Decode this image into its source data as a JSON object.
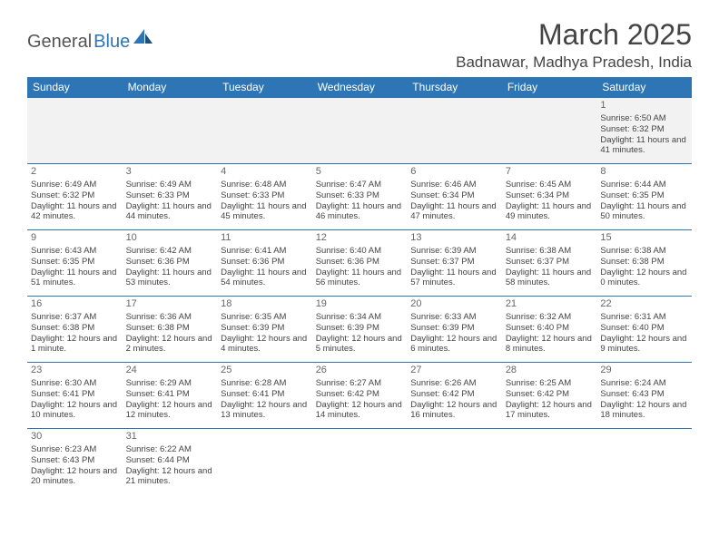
{
  "logo": {
    "part1": "General",
    "part2": "Blue"
  },
  "title": "March 2025",
  "location": "Badnawar, Madhya Pradesh, India",
  "colors": {
    "header_bg": "#2e75b6",
    "header_text": "#ffffff",
    "grid_border": "#2e75b6",
    "body_text": "#444444",
    "first_row_bg": "#f2f2f2",
    "logo_accent": "#2e75b6"
  },
  "typography": {
    "title_fontsize": 32,
    "location_fontsize": 17,
    "th_fontsize": 12,
    "cell_fontsize": 9.5,
    "daynum_fontsize": 11
  },
  "columns": [
    "Sunday",
    "Monday",
    "Tuesday",
    "Wednesday",
    "Thursday",
    "Friday",
    "Saturday"
  ],
  "weeks": [
    [
      null,
      null,
      null,
      null,
      null,
      null,
      {
        "day": "1",
        "sunrise": "Sunrise: 6:50 AM",
        "sunset": "Sunset: 6:32 PM",
        "daylight": "Daylight: 11 hours and 41 minutes."
      }
    ],
    [
      {
        "day": "2",
        "sunrise": "Sunrise: 6:49 AM",
        "sunset": "Sunset: 6:32 PM",
        "daylight": "Daylight: 11 hours and 42 minutes."
      },
      {
        "day": "3",
        "sunrise": "Sunrise: 6:49 AM",
        "sunset": "Sunset: 6:33 PM",
        "daylight": "Daylight: 11 hours and 44 minutes."
      },
      {
        "day": "4",
        "sunrise": "Sunrise: 6:48 AM",
        "sunset": "Sunset: 6:33 PM",
        "daylight": "Daylight: 11 hours and 45 minutes."
      },
      {
        "day": "5",
        "sunrise": "Sunrise: 6:47 AM",
        "sunset": "Sunset: 6:33 PM",
        "daylight": "Daylight: 11 hours and 46 minutes."
      },
      {
        "day": "6",
        "sunrise": "Sunrise: 6:46 AM",
        "sunset": "Sunset: 6:34 PM",
        "daylight": "Daylight: 11 hours and 47 minutes."
      },
      {
        "day": "7",
        "sunrise": "Sunrise: 6:45 AM",
        "sunset": "Sunset: 6:34 PM",
        "daylight": "Daylight: 11 hours and 49 minutes."
      },
      {
        "day": "8",
        "sunrise": "Sunrise: 6:44 AM",
        "sunset": "Sunset: 6:35 PM",
        "daylight": "Daylight: 11 hours and 50 minutes."
      }
    ],
    [
      {
        "day": "9",
        "sunrise": "Sunrise: 6:43 AM",
        "sunset": "Sunset: 6:35 PM",
        "daylight": "Daylight: 11 hours and 51 minutes."
      },
      {
        "day": "10",
        "sunrise": "Sunrise: 6:42 AM",
        "sunset": "Sunset: 6:36 PM",
        "daylight": "Daylight: 11 hours and 53 minutes."
      },
      {
        "day": "11",
        "sunrise": "Sunrise: 6:41 AM",
        "sunset": "Sunset: 6:36 PM",
        "daylight": "Daylight: 11 hours and 54 minutes."
      },
      {
        "day": "12",
        "sunrise": "Sunrise: 6:40 AM",
        "sunset": "Sunset: 6:36 PM",
        "daylight": "Daylight: 11 hours and 56 minutes."
      },
      {
        "day": "13",
        "sunrise": "Sunrise: 6:39 AM",
        "sunset": "Sunset: 6:37 PM",
        "daylight": "Daylight: 11 hours and 57 minutes."
      },
      {
        "day": "14",
        "sunrise": "Sunrise: 6:38 AM",
        "sunset": "Sunset: 6:37 PM",
        "daylight": "Daylight: 11 hours and 58 minutes."
      },
      {
        "day": "15",
        "sunrise": "Sunrise: 6:38 AM",
        "sunset": "Sunset: 6:38 PM",
        "daylight": "Daylight: 12 hours and 0 minutes."
      }
    ],
    [
      {
        "day": "16",
        "sunrise": "Sunrise: 6:37 AM",
        "sunset": "Sunset: 6:38 PM",
        "daylight": "Daylight: 12 hours and 1 minute."
      },
      {
        "day": "17",
        "sunrise": "Sunrise: 6:36 AM",
        "sunset": "Sunset: 6:38 PM",
        "daylight": "Daylight: 12 hours and 2 minutes."
      },
      {
        "day": "18",
        "sunrise": "Sunrise: 6:35 AM",
        "sunset": "Sunset: 6:39 PM",
        "daylight": "Daylight: 12 hours and 4 minutes."
      },
      {
        "day": "19",
        "sunrise": "Sunrise: 6:34 AM",
        "sunset": "Sunset: 6:39 PM",
        "daylight": "Daylight: 12 hours and 5 minutes."
      },
      {
        "day": "20",
        "sunrise": "Sunrise: 6:33 AM",
        "sunset": "Sunset: 6:39 PM",
        "daylight": "Daylight: 12 hours and 6 minutes."
      },
      {
        "day": "21",
        "sunrise": "Sunrise: 6:32 AM",
        "sunset": "Sunset: 6:40 PM",
        "daylight": "Daylight: 12 hours and 8 minutes."
      },
      {
        "day": "22",
        "sunrise": "Sunrise: 6:31 AM",
        "sunset": "Sunset: 6:40 PM",
        "daylight": "Daylight: 12 hours and 9 minutes."
      }
    ],
    [
      {
        "day": "23",
        "sunrise": "Sunrise: 6:30 AM",
        "sunset": "Sunset: 6:41 PM",
        "daylight": "Daylight: 12 hours and 10 minutes."
      },
      {
        "day": "24",
        "sunrise": "Sunrise: 6:29 AM",
        "sunset": "Sunset: 6:41 PM",
        "daylight": "Daylight: 12 hours and 12 minutes."
      },
      {
        "day": "25",
        "sunrise": "Sunrise: 6:28 AM",
        "sunset": "Sunset: 6:41 PM",
        "daylight": "Daylight: 12 hours and 13 minutes."
      },
      {
        "day": "26",
        "sunrise": "Sunrise: 6:27 AM",
        "sunset": "Sunset: 6:42 PM",
        "daylight": "Daylight: 12 hours and 14 minutes."
      },
      {
        "day": "27",
        "sunrise": "Sunrise: 6:26 AM",
        "sunset": "Sunset: 6:42 PM",
        "daylight": "Daylight: 12 hours and 16 minutes."
      },
      {
        "day": "28",
        "sunrise": "Sunrise: 6:25 AM",
        "sunset": "Sunset: 6:42 PM",
        "daylight": "Daylight: 12 hours and 17 minutes."
      },
      {
        "day": "29",
        "sunrise": "Sunrise: 6:24 AM",
        "sunset": "Sunset: 6:43 PM",
        "daylight": "Daylight: 12 hours and 18 minutes."
      }
    ],
    [
      {
        "day": "30",
        "sunrise": "Sunrise: 6:23 AM",
        "sunset": "Sunset: 6:43 PM",
        "daylight": "Daylight: 12 hours and 20 minutes."
      },
      {
        "day": "31",
        "sunrise": "Sunrise: 6:22 AM",
        "sunset": "Sunset: 6:44 PM",
        "daylight": "Daylight: 12 hours and 21 minutes."
      },
      null,
      null,
      null,
      null,
      null
    ]
  ]
}
